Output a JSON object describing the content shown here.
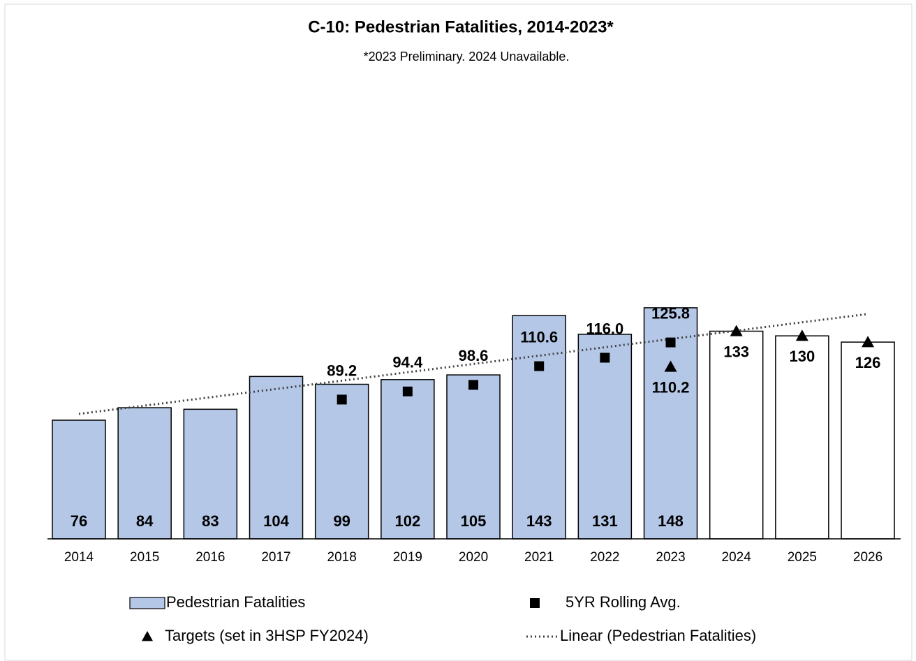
{
  "chart_data": {
    "type": "bar",
    "title": "C-10: Pedestrian Fatalities, 2014-2023*",
    "subtitle": "*2023 Preliminary. 2024 Unavailable.",
    "categories": [
      "2014",
      "2015",
      "2016",
      "2017",
      "2018",
      "2019",
      "2020",
      "2021",
      "2022",
      "2023",
      "2024",
      "2025",
      "2026"
    ],
    "ylim": [
      0,
      285
    ],
    "series": [
      {
        "name": "Pedestrian Fatalities",
        "kind": "bar",
        "color": "#b4c7e7",
        "values": [
          76,
          84,
          83,
          104,
          99,
          102,
          105,
          143,
          131,
          148,
          null,
          null,
          null
        ]
      },
      {
        "name": "5YR Rolling Avg.",
        "kind": "square",
        "color": "#000000",
        "values": [
          null,
          null,
          null,
          null,
          89.2,
          94.4,
          98.6,
          110.6,
          116.0,
          125.8,
          null,
          null,
          null
        ],
        "value_labels": [
          null,
          null,
          null,
          null,
          "89.2",
          "94.4",
          "98.6",
          "110.6",
          "116.0",
          "125.8",
          null,
          null,
          null
        ]
      },
      {
        "name": "Targets (set in 3HSP FY2024)",
        "kind": "triangle",
        "color": "#000000",
        "values": [
          null,
          null,
          null,
          null,
          null,
          null,
          null,
          null,
          null,
          110.2,
          133,
          130,
          126
        ]
      },
      {
        "name": "Linear (Pedestrian Fatalities)",
        "kind": "trend",
        "color": "#404040",
        "values": [
          80.0,
          85.3,
          90.7,
          96.0,
          101.3,
          106.7,
          112.0,
          117.3,
          122.7,
          128.0,
          133.3,
          138.7,
          144.0
        ]
      }
    ]
  }
}
